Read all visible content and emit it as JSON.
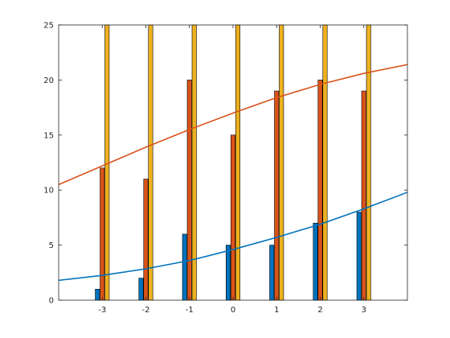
{
  "chart_data": {
    "type": "bar",
    "title": "",
    "xlabel": "",
    "ylabel": "",
    "categories": [
      -3,
      -2,
      -1,
      0,
      1,
      2,
      3
    ],
    "xlim": [
      -4,
      4
    ],
    "ylim": [
      0,
      25
    ],
    "xticks": [
      "-3",
      "-2",
      "-1",
      "0",
      "1",
      "2",
      "3"
    ],
    "yticks": [
      "0",
      "5",
      "10",
      "15",
      "20",
      "25"
    ],
    "grid": false,
    "legend": "none",
    "series": [
      {
        "values": [
          1,
          2,
          6,
          5,
          5,
          7,
          8
        ],
        "color": "#0072BD"
      },
      {
        "values": [
          12,
          11,
          20,
          15,
          19,
          20,
          19
        ],
        "color": "#D95319"
      },
      {
        "values": [
          25,
          25,
          25,
          25,
          25,
          25,
          25
        ],
        "color": "#EDB120",
        "note_clipped": true
      }
    ],
    "lines": [
      {
        "color": "#0072BD",
        "x": [
          -4,
          -3,
          -2,
          -1,
          0,
          1,
          2,
          3,
          4
        ],
        "y": [
          1.8,
          2.25,
          2.85,
          3.6,
          4.6,
          5.7,
          6.9,
          8.3,
          9.8
        ]
      },
      {
        "color": "#D95319",
        "x": [
          -4,
          -3,
          -2,
          -1,
          0,
          1,
          2,
          3,
          4
        ],
        "y": [
          10.5,
          12.2,
          13.9,
          15.5,
          17.0,
          18.4,
          19.6,
          20.6,
          21.4
        ]
      }
    ]
  }
}
